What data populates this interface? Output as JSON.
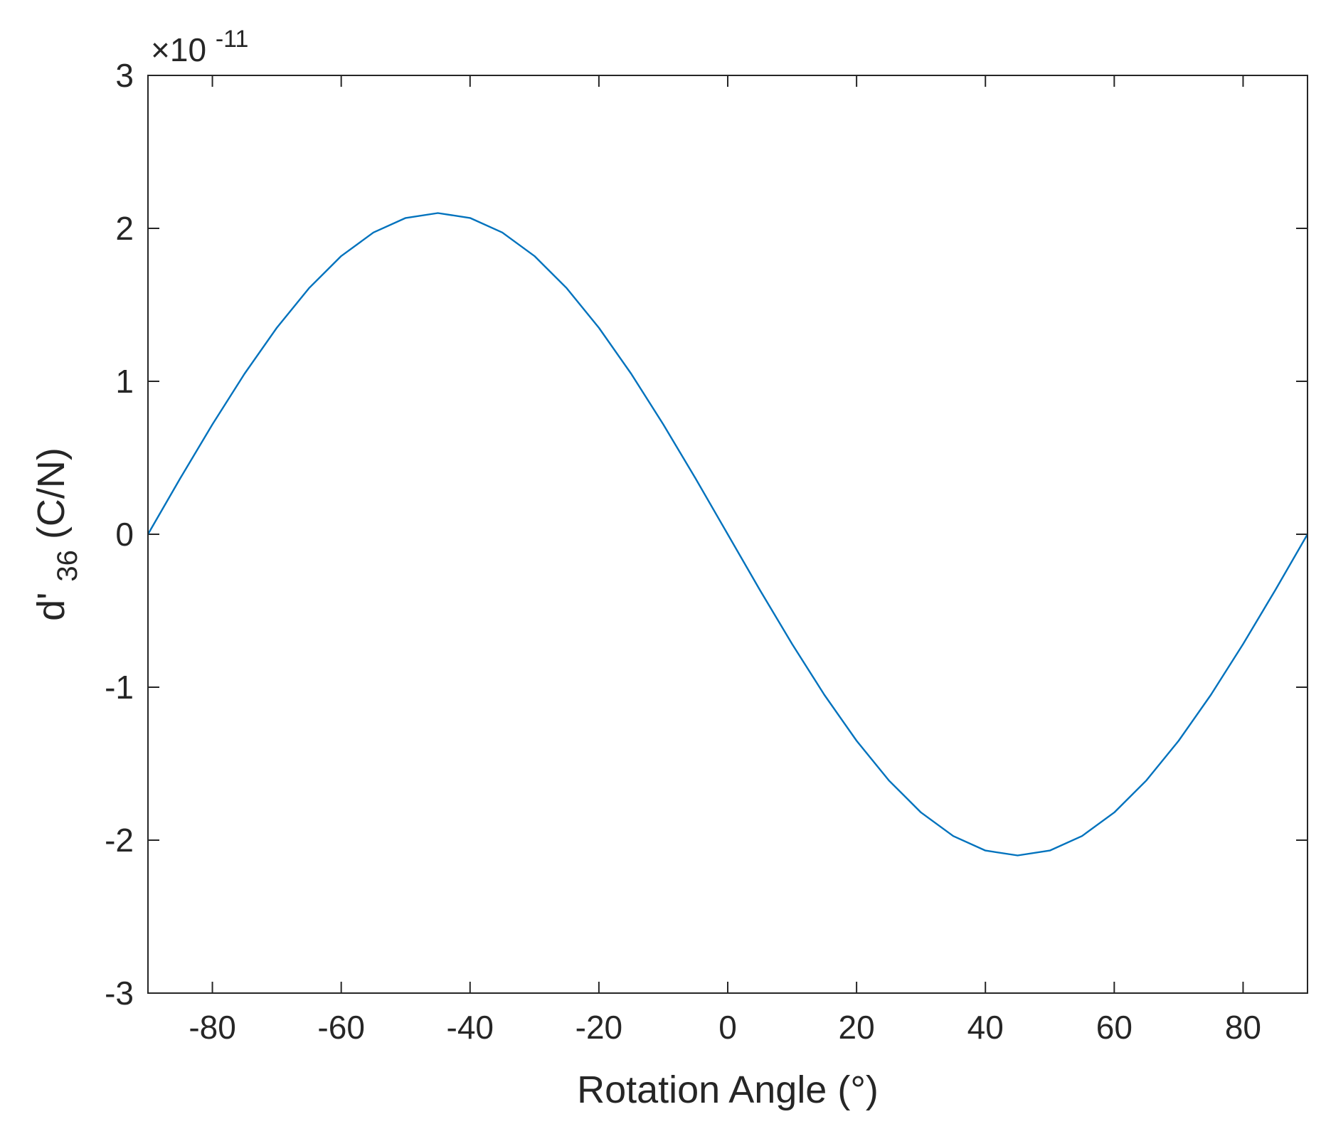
{
  "chart_data": {
    "type": "line",
    "title": "",
    "xlabel": "Rotation Angle (°)",
    "ylabel": {
      "main": "d'",
      "subscript": "36",
      "unit": " (C/N)"
    },
    "y_exponent_label": {
      "base": "×10",
      "exponent": "-11"
    },
    "y_scale": 1e-11,
    "xlim": [
      -90,
      90
    ],
    "ylim": [
      -3,
      3
    ],
    "xticks": [
      -80,
      -60,
      -40,
      -20,
      0,
      20,
      40,
      60,
      80
    ],
    "xtick_labels": [
      "-80",
      "-60",
      "-40",
      "-20",
      "0",
      "20",
      "40",
      "60",
      "80"
    ],
    "yticks": [
      -3,
      -2,
      -1,
      0,
      1,
      2,
      3
    ],
    "ytick_labels": [
      "-3",
      "-2",
      "-1",
      "0",
      "1",
      "2",
      "3"
    ],
    "grid": false,
    "series": [
      {
        "color": "#0072BD",
        "x": [
          -90,
          -85,
          -80,
          -75,
          -70,
          -65,
          -60,
          -55,
          -50,
          -45,
          -40,
          -35,
          -30,
          -25,
          -20,
          -15,
          -10,
          -5,
          0,
          5,
          10,
          15,
          20,
          25,
          30,
          35,
          40,
          45,
          50,
          55,
          60,
          65,
          70,
          75,
          80,
          85,
          90
        ],
        "y": [
          0.0,
          0.365,
          0.718,
          1.05,
          1.35,
          1.609,
          1.819,
          1.973,
          2.068,
          2.1,
          2.068,
          1.973,
          1.819,
          1.609,
          1.35,
          1.05,
          0.718,
          0.365,
          0.0,
          -0.365,
          -0.718,
          -1.05,
          -1.35,
          -1.609,
          -1.819,
          -1.973,
          -2.068,
          -2.1,
          -2.068,
          -1.973,
          -1.819,
          -1.609,
          -1.35,
          -1.05,
          -0.718,
          -0.365,
          0.0
        ]
      }
    ]
  }
}
